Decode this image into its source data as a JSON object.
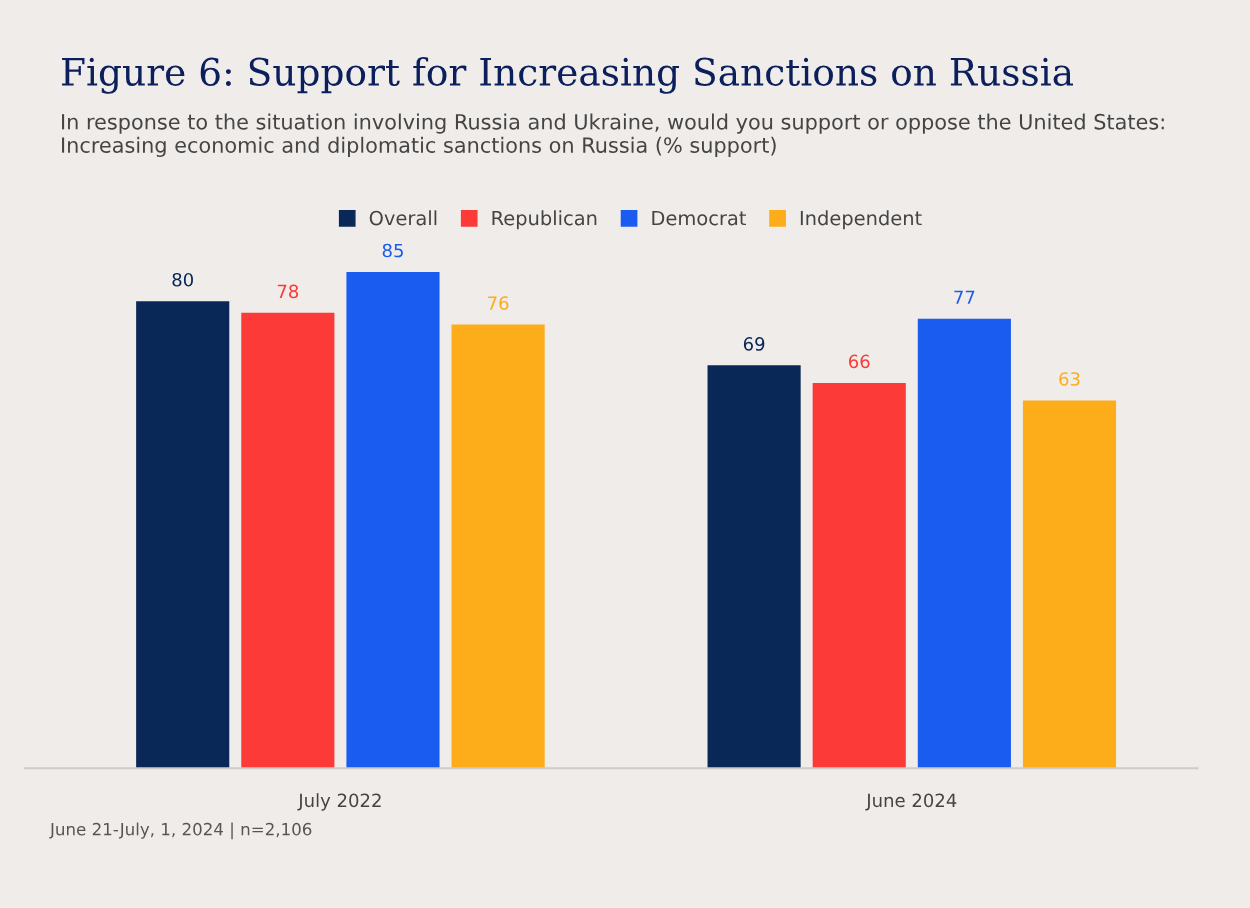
{
  "chart_data": {
    "type": "bar",
    "title": "Figure 6: Support for Increasing Sanctions on Russia",
    "subtitle": "In response to the situation involving Russia and Ukraine, would you support or oppose the United States: Increasing economic and diplomatic sanctions on Russia (% support)",
    "categories": [
      "July 2022",
      "June 2024"
    ],
    "series": [
      {
        "name": "Overall",
        "color": "#0a2857",
        "values": [
          80,
          69
        ]
      },
      {
        "name": "Republican",
        "color": "#fc3a37",
        "values": [
          78,
          66
        ]
      },
      {
        "name": "Democrat",
        "color": "#1a5cf0",
        "values": [
          85,
          77
        ]
      },
      {
        "name": "Independent",
        "color": "#fdac1a",
        "values": [
          76,
          63
        ]
      }
    ],
    "data_labels": true,
    "legend": "top",
    "grid": false,
    "annotations": [
      "June 21-July, 1, 2024 | n=2,106"
    ]
  }
}
